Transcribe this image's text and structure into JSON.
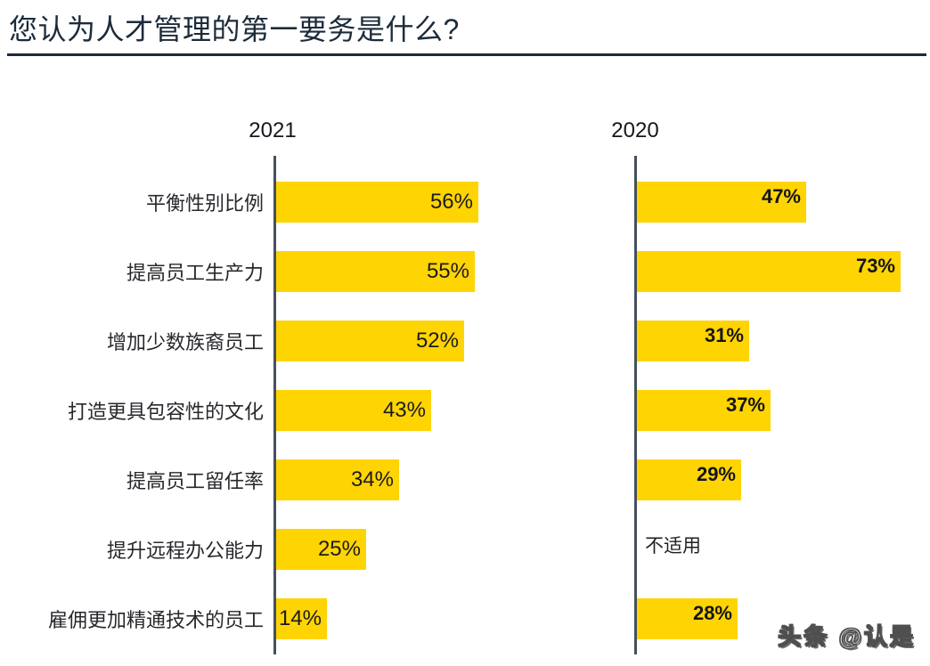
{
  "header": {
    "title": "您认为人才管理的第一要务是什么?"
  },
  "colors": {
    "bar": "#FFD403",
    "axis": "#454F5E",
    "title": "#1C2B3A",
    "category_text": "#27282C",
    "value_text": "#1B1B1E"
  },
  "watermark": "头条 @认是",
  "chart_data": {
    "type": "bar",
    "orientation": "horizontal",
    "title": "您认为人才管理的第一要务是什么?",
    "categories": [
      "平衡性别比例",
      "提高员工生产力",
      "增加少数族裔员工",
      "打造更具包容性的文化",
      "提高员工留任率",
      "提升远程办公能力",
      "雇佣更加精通技术的员工"
    ],
    "series": [
      {
        "name": "2021",
        "values": [
          56,
          55,
          52,
          43,
          34,
          25,
          14
        ],
        "labels": [
          "56%",
          "55%",
          "52%",
          "43%",
          "34%",
          "25%",
          "14%"
        ]
      },
      {
        "name": "2020",
        "values": [
          47,
          73,
          31,
          37,
          29,
          null,
          28
        ],
        "labels": [
          "47%",
          "73%",
          "31%",
          "37%",
          "29%",
          "不适用",
          "28%"
        ]
      }
    ],
    "na_label": "不适用",
    "unit": "%",
    "xlim": [
      0,
      100
    ],
    "grid": false,
    "value_label_position": "inside-end",
    "legend_position": "column-headers"
  }
}
